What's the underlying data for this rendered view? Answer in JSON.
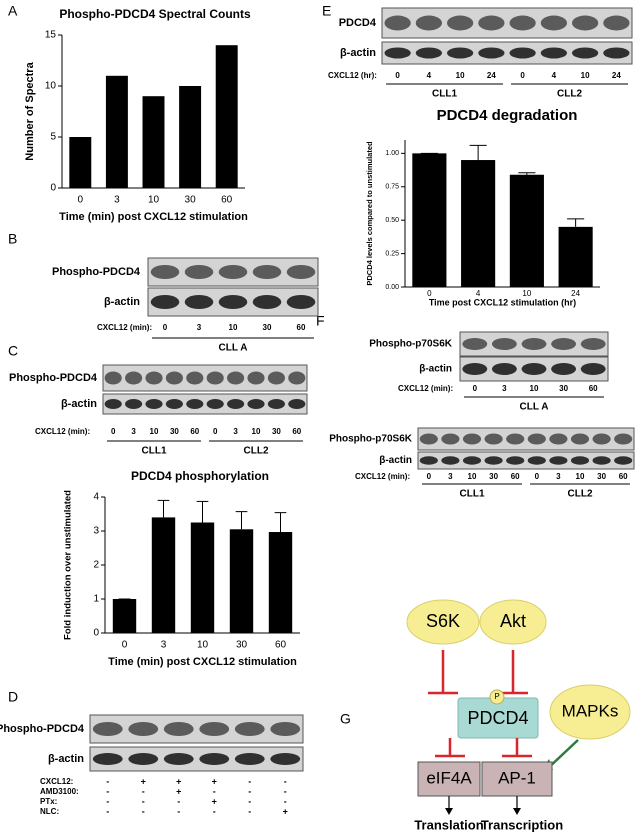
{
  "panel_labels": [
    "A",
    "B",
    "C",
    "D",
    "E",
    "F",
    "G"
  ],
  "chart_data": [
    {
      "type": "bar",
      "title": "Phospho-PDCD4 Spectral Counts",
      "categories": [
        "0",
        "3",
        "10",
        "30",
        "60"
      ],
      "values": [
        5,
        11,
        9,
        10,
        14
      ],
      "color": "#000000",
      "xlabel": "Time (min) post CXCL12 stimulation",
      "ylabel": "Number of Spectra",
      "ylim": [
        0,
        15
      ],
      "yticks": [
        0,
        5,
        10,
        15
      ]
    },
    {
      "type": "bar",
      "title": "PDCD4 phosphorylation",
      "categories": [
        "0",
        "3",
        "10",
        "30",
        "60"
      ],
      "values": [
        1,
        3.4,
        3.25,
        3.05,
        2.97
      ],
      "errors": [
        0,
        0.5,
        0.62,
        0.52,
        0.57
      ],
      "color": "#000000",
      "xlabel": "Time (min) post CXCL12 stimulation",
      "ylabel": "Fold induction over unstimulated",
      "ylim": [
        0,
        4
      ],
      "yticks": [
        0,
        1,
        2,
        3,
        4
      ]
    },
    {
      "type": "bar",
      "title": "PDCD4 degradation",
      "categories": [
        "0",
        "4",
        "10",
        "24"
      ],
      "values": [
        1.0,
        0.95,
        0.84,
        0.45
      ],
      "errors": [
        0,
        0.11,
        0.015,
        0.06
      ],
      "color": "#000000",
      "xlabel": "Time post CXCL12 stimulation (hr)",
      "ylabel": "PDCD4 levels compared to unstimulated",
      "ylim": [
        0,
        1.1
      ],
      "yticks": [
        {
          "value": 0,
          "label": "0.00"
        },
        {
          "value": 0.25,
          "label": "0.25"
        },
        {
          "value": 0.5,
          "label": "0.50"
        },
        {
          "value": 0.75,
          "label": "0.75"
        },
        {
          "value": 1,
          "label": "1.00"
        }
      ]
    }
  ],
  "blots": {
    "B": {
      "rows": [
        "Phospho-PDCD4",
        "β-actin"
      ],
      "treatment": "CXCL12 (min):",
      "lanes": [
        "0",
        "3",
        "10",
        "30",
        "60"
      ],
      "groups": [
        "CLL A"
      ]
    },
    "C": {
      "rows": [
        "Phospho-PDCD4",
        "β-actin"
      ],
      "treatment": "CXCL12 (min):",
      "lanes": [
        "0",
        "3",
        "10",
        "30",
        "60",
        "0",
        "3",
        "10",
        "30",
        "60"
      ],
      "groups": [
        "CLL1",
        "CLL2"
      ]
    },
    "D": {
      "rows": [
        "Phospho-PDCD4",
        "β-actin"
      ],
      "conditions": [
        {
          "name": "CXCL12:",
          "marks": [
            "-",
            "+",
            "+",
            "+",
            "-",
            "-"
          ]
        },
        {
          "name": "AMD3100:",
          "marks": [
            "-",
            "-",
            "+",
            "-",
            "-",
            "-"
          ]
        },
        {
          "name": "PTx:",
          "marks": [
            "-",
            "-",
            "-",
            "+",
            "-",
            "-"
          ]
        },
        {
          "name": "NLC:",
          "marks": [
            "-",
            "-",
            "-",
            "-",
            "-",
            "+"
          ]
        }
      ]
    },
    "E": {
      "rows": [
        "PDCD4",
        "β-actin"
      ],
      "treatment": "CXCL12 (hr):",
      "lanes": [
        "0",
        "4",
        "10",
        "24",
        "0",
        "4",
        "10",
        "24"
      ],
      "groups": [
        "CLL1",
        "CLL2"
      ]
    },
    "F1": {
      "rows": [
        "Phospho-p70S6K",
        "β-actin"
      ],
      "treatment": "CXCL12 (min):",
      "lanes": [
        "0",
        "3",
        "10",
        "30",
        "60"
      ],
      "groups": [
        "CLL A"
      ]
    },
    "F2": {
      "rows": [
        "Phospho-p70S6K",
        "β-actin"
      ],
      "treatment": "CXCL12 (min):",
      "lanes": [
        "0",
        "3",
        "10",
        "30",
        "60",
        "0",
        "3",
        "10",
        "30",
        "60"
      ],
      "groups": [
        "CLL1",
        "CLL2"
      ]
    }
  },
  "diagram": {
    "s6k": "S6K",
    "akt": "Akt",
    "pdcd4": "PDCD4",
    "phospho": "P",
    "mapks": "MAPKs",
    "eif4a": "eIF4A",
    "ap1": "AP-1",
    "translation": "Translation",
    "transcription": "Transcription"
  }
}
